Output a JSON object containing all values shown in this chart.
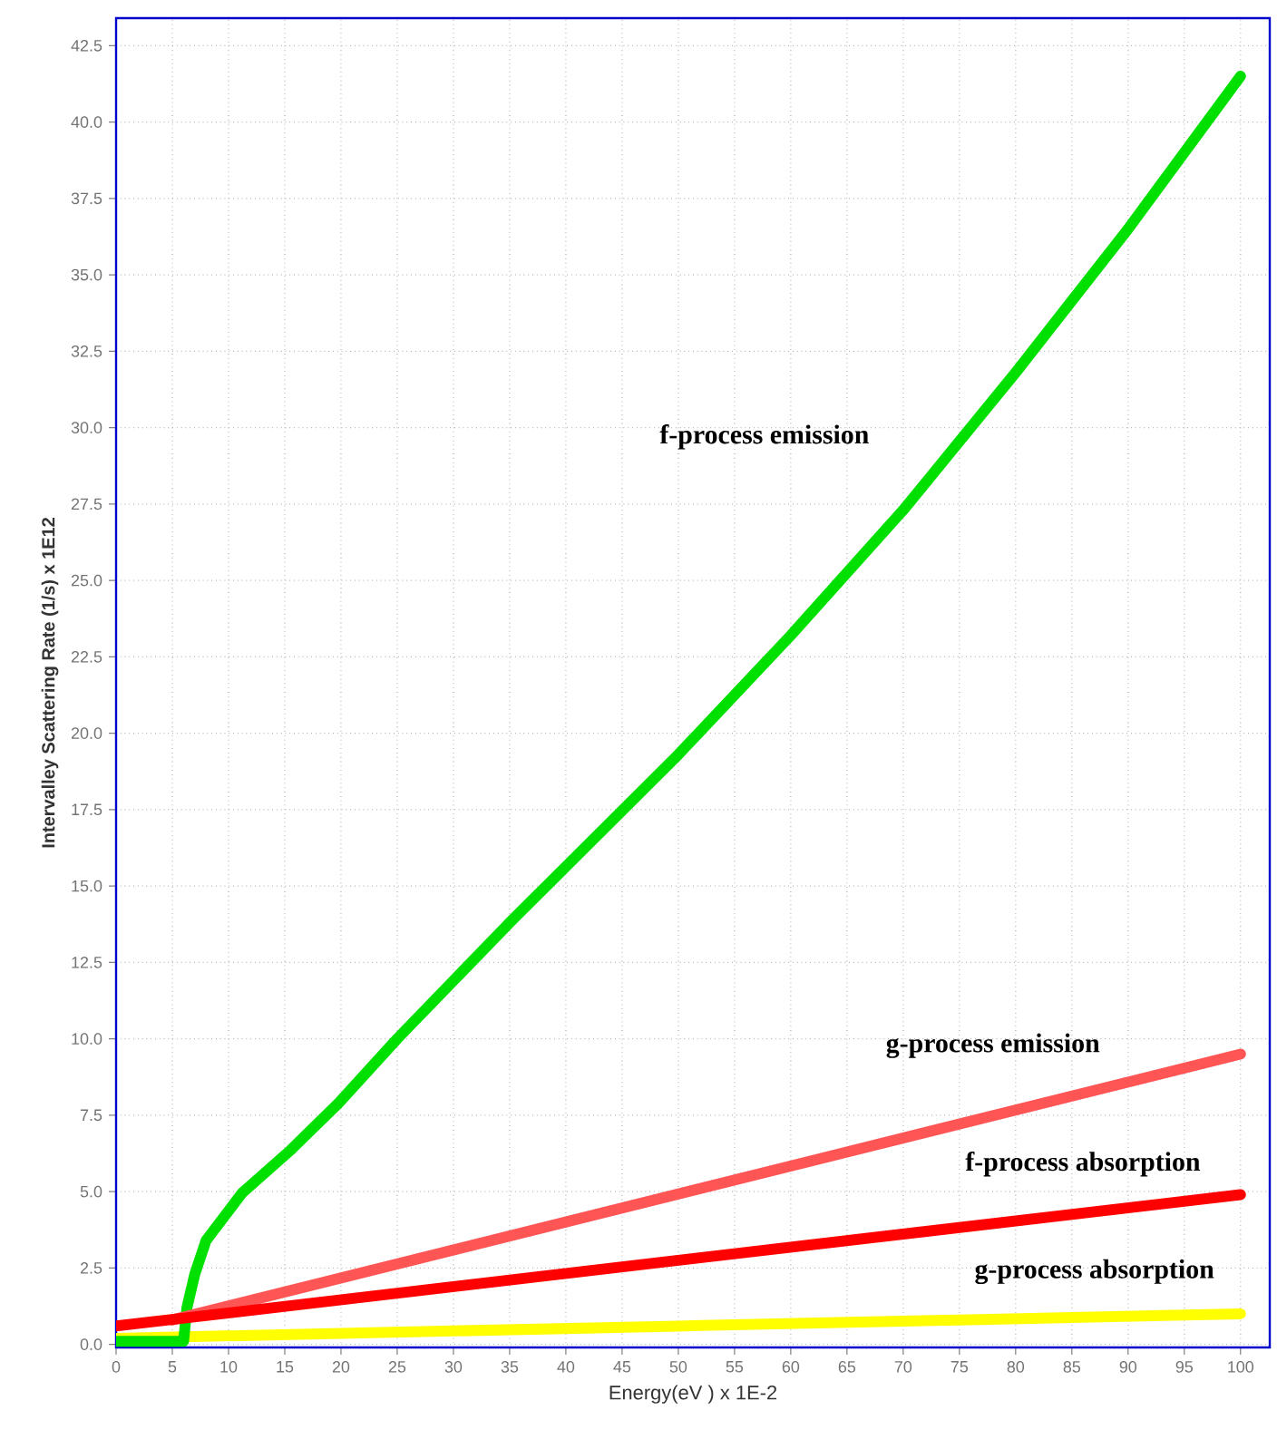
{
  "chart_data": {
    "type": "line",
    "xlabel": "Energy(eV ) x 1E-2",
    "ylabel": "Intervalley Scattering Rate  (1/s) x 1E12",
    "xlim": [
      0,
      102.6
    ],
    "ylim": [
      -0.1,
      43.4
    ],
    "xticks": [
      0,
      5,
      10,
      15,
      20,
      25,
      30,
      35,
      40,
      45,
      50,
      55,
      60,
      65,
      70,
      75,
      80,
      85,
      90,
      95,
      100
    ],
    "yticks": [
      {
        "value": 0,
        "label": "0.0"
      },
      2.5,
      {
        "value": 5,
        "label": "5.0"
      },
      7.5,
      {
        "value": 10,
        "label": "10.0"
      },
      12.5,
      {
        "value": 15,
        "label": "15.0"
      },
      17.5,
      {
        "value": 20,
        "label": "20.0"
      },
      22.5,
      {
        "value": 25,
        "label": "25.0"
      },
      27.5,
      {
        "value": 30,
        "label": "30.0"
      },
      32.5,
      {
        "value": 35,
        "label": "35.0"
      },
      37.5,
      {
        "value": 40,
        "label": "40.0"
      },
      42.5
    ],
    "grid": true,
    "marker": "none",
    "line_style": "solid",
    "series": [
      {
        "name": "g-process absorption",
        "color": "#ffff00",
        "x": [
          0,
          25,
          50,
          75,
          100
        ],
        "values": [
          0.2,
          0.4,
          0.6,
          0.8,
          1.0
        ]
      },
      {
        "name": "f-process emission",
        "color": "#00e000",
        "x": [
          0,
          6,
          6.3,
          7,
          8,
          11.2,
          15.5,
          19.8,
          25,
          35,
          50,
          60,
          70,
          80,
          90,
          100
        ],
        "values": [
          0.1,
          0.1,
          1.2,
          2.3,
          3.4,
          4.95,
          6.35,
          7.9,
          10.0,
          13.8,
          19.3,
          23.2,
          27.3,
          31.8,
          36.5,
          41.5
        ]
      },
      {
        "name": "g-process emission",
        "color": "#ff5555",
        "x": [
          5,
          100
        ],
        "values": [
          0.8,
          9.5
        ]
      },
      {
        "name": "f-process absorption",
        "color": "#ff0000",
        "x": [
          0,
          100
        ],
        "values": [
          0.6,
          4.9
        ]
      }
    ]
  }
}
